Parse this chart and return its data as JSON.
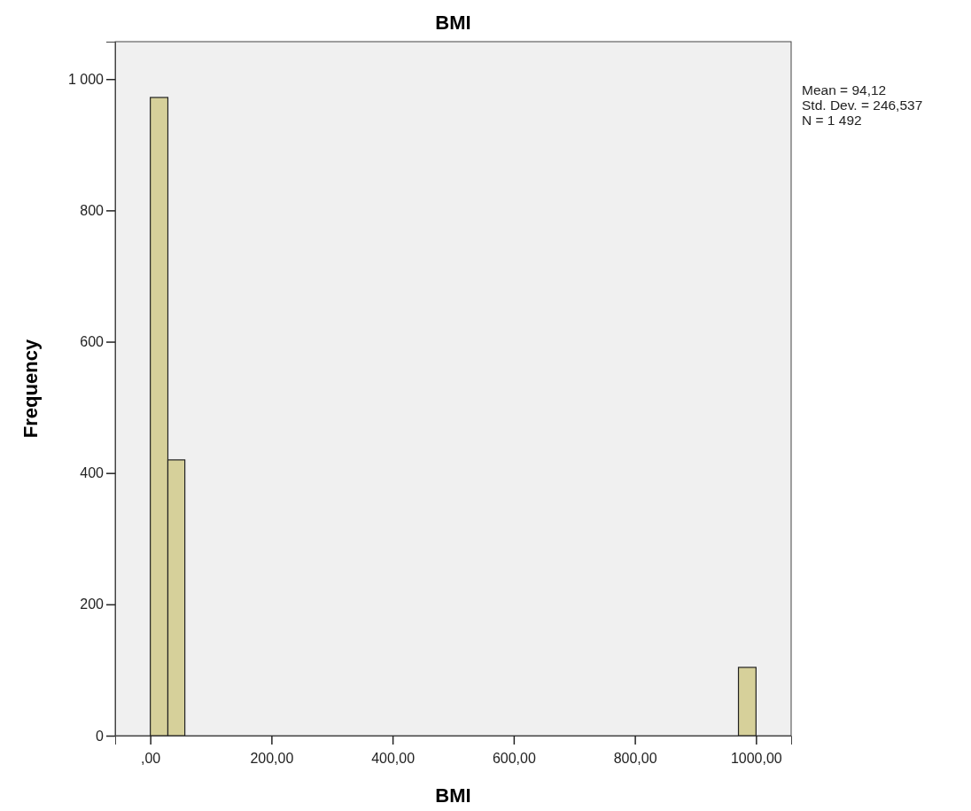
{
  "chart_data": {
    "type": "histogram",
    "title": "BMI",
    "xlabel": "BMI",
    "ylabel": "Frequency",
    "bins": [
      0,
      29,
      57,
      971,
      1000
    ],
    "values": [
      972,
      420,
      0,
      104
    ],
    "color": "#d6d09a",
    "xlim": [
      -58,
      1058
    ],
    "ylim": [
      0,
      1057
    ],
    "xticks": [
      {
        "value": 0,
        "label": ",00"
      },
      {
        "value": 200,
        "label": "200,00"
      },
      {
        "value": 400,
        "label": "400,00"
      },
      {
        "value": 600,
        "label": "600,00"
      },
      {
        "value": 800,
        "label": "800,00"
      },
      {
        "value": 1000,
        "label": "1000,00"
      }
    ],
    "yticks": [
      0,
      200,
      400,
      600,
      800,
      {
        "value": 1000,
        "label": "1 000"
      }
    ],
    "grid": false,
    "annotations": [
      "Mean = 94,12",
      "Std. Dev. = 246,537",
      "N = 1 492"
    ]
  }
}
